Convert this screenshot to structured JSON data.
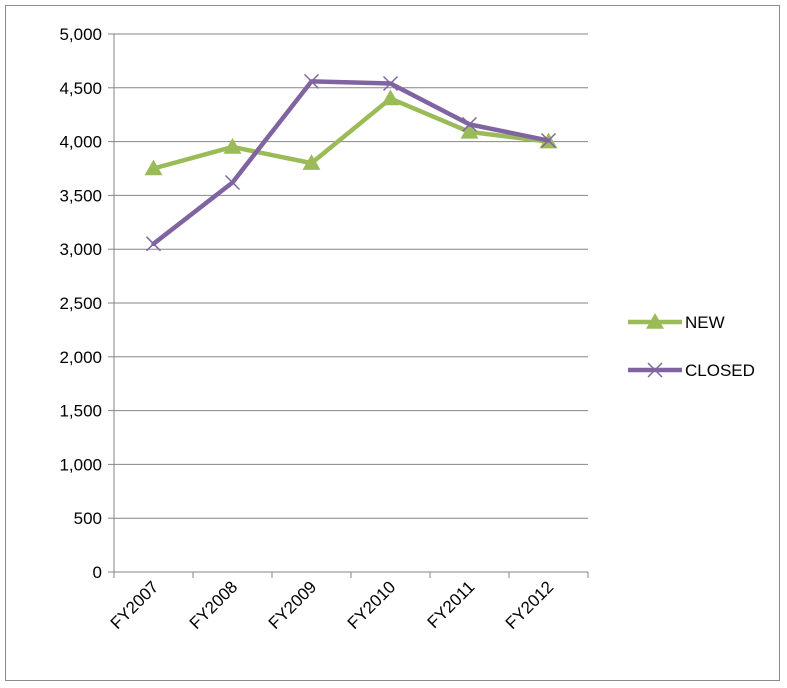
{
  "chart_data": {
    "type": "line",
    "categories": [
      "FY2007",
      "FY2008",
      "FY2009",
      "FY2010",
      "FY2011",
      "FY2012"
    ],
    "series": [
      {
        "name": "NEW",
        "values": [
          3750,
          3950,
          3800,
          4400,
          4090,
          4000
        ],
        "color": "#9bbb59",
        "marker": "triangle"
      },
      {
        "name": "CLOSED",
        "values": [
          3050,
          3620,
          4560,
          4540,
          4160,
          4010
        ],
        "color": "#8064a2",
        "marker": "x"
      }
    ],
    "ylim": [
      0,
      5000
    ],
    "yticks": [
      "0",
      "500",
      "1,000",
      "1,500",
      "2,000",
      "2,500",
      "3,000",
      "3,500",
      "4,000",
      "4,500",
      "5,000"
    ],
    "ytick_values": [
      0,
      500,
      1000,
      1500,
      2000,
      2500,
      3000,
      3500,
      4000,
      4500,
      5000
    ],
    "title": "",
    "xlabel": "",
    "ylabel": "",
    "grid": true,
    "legend_position": "right"
  }
}
